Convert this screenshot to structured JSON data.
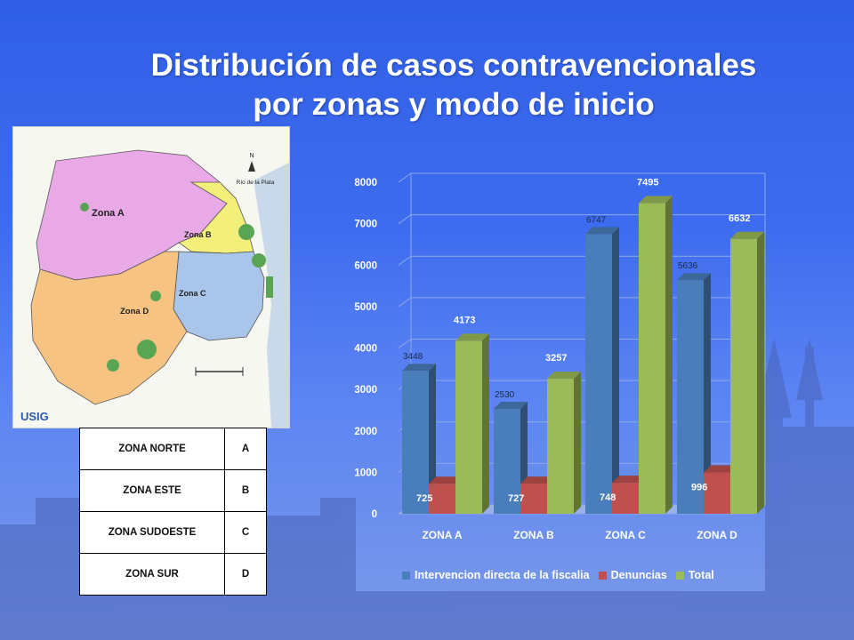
{
  "title": {
    "line1": "Distribución de casos contravencionales",
    "line2": "por zonas y modo de inicio"
  },
  "map": {
    "zone_labels": [
      "Zona A",
      "Zona B",
      "Zona C",
      "Zona D"
    ],
    "river_label": "Río de la Plata",
    "north_label": "N",
    "logo_text": "USIG",
    "zone_colors": {
      "A": "#e9a8e6",
      "B": "#f2f07a",
      "C": "#a9c6ea",
      "D": "#f6c383"
    }
  },
  "zone_table": {
    "rows": [
      {
        "zone": "ZONA NORTE",
        "code": "A"
      },
      {
        "zone": "ZONA ESTE",
        "code": "B"
      },
      {
        "zone": "ZONA SUDOESTE",
        "code": "C"
      },
      {
        "zone": "ZONA SUR",
        "code": "D"
      }
    ]
  },
  "chart_data": {
    "type": "bar",
    "categories": [
      "ZONA A",
      "ZONA B",
      "ZONA C",
      "ZONA D"
    ],
    "series": [
      {
        "name": "Intervencion directa de la fiscalia",
        "color": "#4a7ebb",
        "values": [
          3448,
          2530,
          6747,
          5636
        ]
      },
      {
        "name": "Denuncias",
        "color": "#c0504d",
        "values": [
          725,
          727,
          748,
          996
        ]
      },
      {
        "name": "Total",
        "color": "#9bbb59",
        "values": [
          4173,
          3257,
          7495,
          6632
        ]
      }
    ],
    "ylim": [
      0,
      8000
    ],
    "y_ticks": [
      0,
      1000,
      2000,
      3000,
      4000,
      5000,
      6000,
      7000,
      8000
    ],
    "data_labels": true,
    "grid": true,
    "legend_position": "bottom",
    "style": "3d-clustered"
  }
}
